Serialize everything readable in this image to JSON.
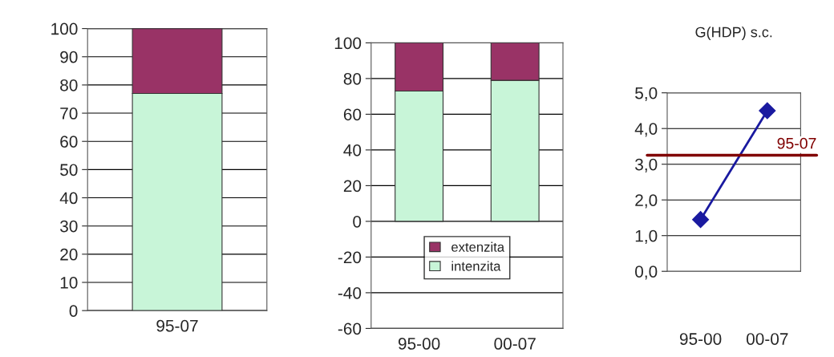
{
  "chart_data": [
    {
      "type": "bar",
      "stacked": true,
      "categories": [
        "95-07"
      ],
      "series": [
        {
          "color": "#c8f5d8",
          "values": [
            77
          ]
        },
        {
          "color": "#993366",
          "values": [
            23
          ]
        }
      ],
      "ylim": [
        0,
        100
      ],
      "yticks": [
        0,
        10,
        20,
        30,
        40,
        50,
        60,
        70,
        80,
        90,
        100
      ],
      "grid": "y"
    },
    {
      "type": "bar",
      "stacked": true,
      "categories": [
        "95-00",
        "00-07"
      ],
      "series": [
        {
          "name": "intenzita",
          "color": "#c8f5d8",
          "values": [
            73,
            79
          ]
        },
        {
          "name": "extenzita",
          "color": "#993366",
          "values": [
            27,
            21
          ]
        }
      ],
      "ylim": [
        -60,
        100
      ],
      "yticks": [
        -60,
        -40,
        -20,
        0,
        20,
        40,
        60,
        80,
        100
      ],
      "grid": "y",
      "legend": "bottom"
    },
    {
      "type": "line",
      "title": "G(HDP) s.c.",
      "categories": [
        "95-00",
        "00-07"
      ],
      "series": [
        {
          "color": "#1a1aa0",
          "values": [
            1.45,
            4.5
          ]
        }
      ],
      "marker": "diamond",
      "ylim": [
        0,
        5
      ],
      "yticks": [
        {
          "value": 0,
          "label": "0,0"
        },
        {
          "value": 1,
          "label": "1,0"
        },
        {
          "value": 2,
          "label": "2,0"
        },
        {
          "value": 3,
          "label": "3,0"
        },
        {
          "value": 4,
          "label": "4,0"
        },
        {
          "value": 5,
          "label": "5,0"
        }
      ],
      "grid": "y",
      "ref_lines": [
        {
          "axis": "y",
          "value": 3.25,
          "color": "#800000"
        }
      ],
      "annotations": [
        {
          "text": "95-07",
          "y": 3.25
        }
      ]
    }
  ]
}
